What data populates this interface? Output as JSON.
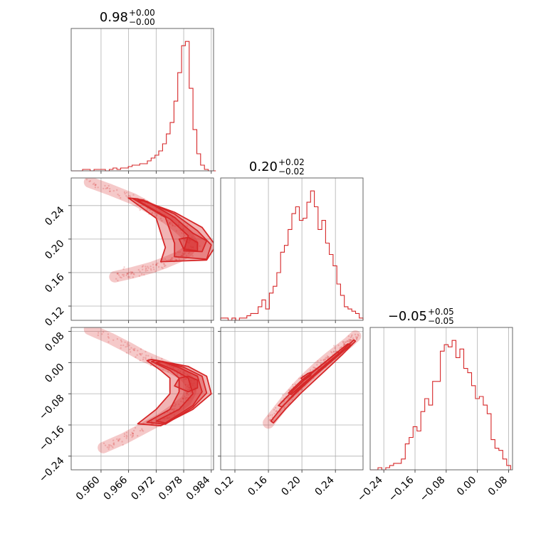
{
  "chart_data": {
    "type": "corner",
    "color": "#d62728",
    "parameters": [
      {
        "title": {
          "median": "0.98",
          "plus": "+0.00",
          "minus": "−0.00"
        },
        "range": [
          0.9535,
          0.9845
        ],
        "ticks": [
          0.96,
          0.966,
          0.972,
          0.978,
          0.984
        ],
        "tick_labels": [
          "0.960",
          "0.966",
          "0.972",
          "0.978",
          "0.984"
        ]
      },
      {
        "title": {
          "median": "0.20",
          "plus": "+0.02",
          "minus": "−0.02"
        },
        "range": [
          0.103,
          0.273
        ],
        "ticks": [
          0.12,
          0.16,
          0.2,
          0.24
        ],
        "tick_labels": [
          "0.12",
          "0.16",
          "0.20",
          "0.24"
        ]
      },
      {
        "title": {
          "median": "−0.05",
          "plus": "+0.05",
          "minus": "−0.05"
        },
        "range": [
          -0.275,
          0.09
        ],
        "ticks": [
          -0.24,
          -0.16,
          -0.08,
          0.0,
          0.08
        ],
        "tick_labels": [
          "−0.24",
          "−0.16",
          "−0.08",
          "0.00",
          "0.08"
        ]
      }
    ],
    "histograms": [
      {
        "edges": [
          0.9535,
          0.985
        ],
        "counts": [
          0,
          0,
          0,
          1,
          1,
          0,
          1,
          1,
          1,
          0,
          1,
          2,
          1,
          2,
          2,
          3,
          4,
          4,
          5,
          5,
          7,
          9,
          11,
          14,
          19,
          26,
          34,
          49,
          69,
          88,
          91,
          58,
          29,
          12,
          4,
          1,
          0,
          0
        ]
      },
      {
        "edges": [
          0.103,
          0.273
        ],
        "counts": [
          1,
          1,
          0,
          1,
          0,
          1,
          1,
          2,
          3,
          3,
          6,
          9,
          5,
          12,
          15,
          21,
          30,
          33,
          40,
          47,
          50,
          44,
          45,
          52,
          57,
          50,
          40,
          44,
          34,
          29,
          24,
          16,
          11,
          6,
          5,
          4,
          3,
          1
        ]
      },
      {
        "edges": [
          -0.275,
          0.085
        ],
        "counts": [
          0,
          0,
          1,
          0,
          1,
          2,
          3,
          3,
          5,
          12,
          15,
          20,
          18,
          27,
          33,
          30,
          41,
          41,
          55,
          58,
          57,
          60,
          52,
          56,
          47,
          45,
          39,
          33,
          34,
          30,
          26,
          14,
          10,
          9,
          5,
          2
        ]
      }
    ],
    "pairs": [
      {
        "x_param": 0,
        "y_param": 1,
        "ridge": [
          [
            0.9575,
            0.268
          ],
          [
            0.962,
            0.259
          ],
          [
            0.967,
            0.248
          ],
          [
            0.971,
            0.236
          ],
          [
            0.9745,
            0.224
          ],
          [
            0.977,
            0.213
          ],
          [
            0.979,
            0.203
          ],
          [
            0.98,
            0.194
          ],
          [
            0.979,
            0.186
          ],
          [
            0.977,
            0.179
          ],
          [
            0.974,
            0.172
          ],
          [
            0.971,
            0.166
          ],
          [
            0.967,
            0.16
          ],
          [
            0.963,
            0.155
          ]
        ],
        "contours": [
          [
            [
              0.977,
              0.2
            ],
            [
              0.978,
              0.188
            ],
            [
              0.981,
              0.186
            ],
            [
              0.981,
              0.196
            ],
            [
              0.979,
              0.202
            ]
          ],
          [
            [
              0.968,
              0.246
            ],
            [
              0.975,
              0.224
            ],
            [
              0.979,
              0.204
            ],
            [
              0.978,
              0.186
            ],
            [
              0.982,
              0.185
            ],
            [
              0.983,
              0.198
            ],
            [
              0.98,
              0.207
            ],
            [
              0.976,
              0.226
            ],
            [
              0.97,
              0.245
            ]
          ],
          [
            [
              0.967,
              0.248
            ],
            [
              0.974,
              0.226
            ],
            [
              0.976,
              0.195
            ],
            [
              0.976,
              0.179
            ],
            [
              0.983,
              0.176
            ],
            [
              0.984,
              0.193
            ],
            [
              0.981,
              0.21
            ],
            [
              0.976,
              0.23
            ],
            [
              0.969,
              0.247
            ]
          ],
          [
            [
              0.966,
              0.249
            ],
            [
              0.972,
              0.225
            ],
            [
              0.974,
              0.19
            ],
            [
              0.973,
              0.173
            ],
            [
              0.983,
              0.175
            ],
            [
              0.985,
              0.192
            ],
            [
              0.982,
              0.214
            ],
            [
              0.976,
              0.232
            ],
            [
              0.968,
              0.248
            ]
          ]
        ]
      },
      {
        "x_param": 0,
        "y_param": 2,
        "ridge": [
          [
            0.9575,
            0.085
          ],
          [
            0.962,
            0.062
          ],
          [
            0.966,
            0.038
          ],
          [
            0.969,
            0.018
          ],
          [
            0.9725,
            0.0
          ],
          [
            0.9755,
            -0.015
          ],
          [
            0.978,
            -0.032
          ],
          [
            0.9795,
            -0.052
          ],
          [
            0.9795,
            -0.075
          ],
          [
            0.9785,
            -0.098
          ],
          [
            0.976,
            -0.12
          ],
          [
            0.973,
            -0.145
          ],
          [
            0.969,
            -0.17
          ],
          [
            0.965,
            -0.195
          ],
          [
            0.9605,
            -0.218
          ]
        ],
        "contours": [
          [
            [
              0.977,
              -0.04
            ],
            [
              0.979,
              -0.035
            ],
            [
              0.981,
              -0.045
            ],
            [
              0.981,
              -0.065
            ],
            [
              0.979,
              -0.075
            ],
            [
              0.976,
              -0.06
            ]
          ],
          [
            [
              0.972,
              0.0
            ],
            [
              0.976,
              -0.02
            ],
            [
              0.979,
              -0.04
            ],
            [
              0.98,
              -0.08
            ],
            [
              0.977,
              -0.12
            ],
            [
              0.972,
              -0.15
            ],
            [
              0.974,
              -0.155
            ],
            [
              0.98,
              -0.11
            ],
            [
              0.982,
              -0.075
            ],
            [
              0.981,
              -0.035
            ],
            [
              0.977,
              -0.013
            ],
            [
              0.973,
              0.003
            ]
          ],
          [
            [
              0.971,
              0.003
            ],
            [
              0.975,
              -0.02
            ],
            [
              0.977,
              -0.04
            ],
            [
              0.977,
              -0.075
            ],
            [
              0.975,
              -0.12
            ],
            [
              0.97,
              -0.153
            ],
            [
              0.974,
              -0.158
            ],
            [
              0.98,
              -0.115
            ],
            [
              0.983,
              -0.078
            ],
            [
              0.982,
              -0.035
            ],
            [
              0.978,
              -0.012
            ],
            [
              0.972,
              0.006
            ]
          ],
          [
            [
              0.97,
              0.005
            ],
            [
              0.973,
              -0.02
            ],
            [
              0.975,
              -0.04
            ],
            [
              0.975,
              -0.08
            ],
            [
              0.972,
              -0.12
            ],
            [
              0.968,
              -0.157
            ],
            [
              0.973,
              -0.162
            ],
            [
              0.98,
              -0.12
            ],
            [
              0.984,
              -0.08
            ],
            [
              0.983,
              -0.035
            ],
            [
              0.979,
              -0.01
            ],
            [
              0.971,
              0.008
            ]
          ]
        ]
      },
      {
        "x_param": 1,
        "y_param": 2,
        "ridge": [
          [
            0.16,
            -0.155
          ],
          [
            0.172,
            -0.122
          ],
          [
            0.184,
            -0.089
          ],
          [
            0.196,
            -0.06
          ],
          [
            0.208,
            -0.034
          ],
          [
            0.22,
            -0.01
          ],
          [
            0.232,
            0.012
          ],
          [
            0.244,
            0.032
          ],
          [
            0.256,
            0.052
          ],
          [
            0.264,
            0.068
          ]
        ],
        "contours": [
          [
            [
              0.199,
              -0.04
            ],
            [
              0.207,
              -0.028
            ],
            [
              0.212,
              -0.024
            ],
            [
              0.21,
              -0.034
            ],
            [
              0.202,
              -0.046
            ]
          ],
          [
            [
              0.184,
              -0.078
            ],
            [
              0.2,
              -0.045
            ],
            [
              0.22,
              -0.012
            ],
            [
              0.242,
              0.026
            ],
            [
              0.246,
              0.025
            ],
            [
              0.224,
              -0.015
            ],
            [
              0.204,
              -0.05
            ],
            [
              0.187,
              -0.082
            ]
          ],
          [
            [
              0.172,
              -0.11
            ],
            [
              0.19,
              -0.07
            ],
            [
              0.21,
              -0.03
            ],
            [
              0.234,
              0.012
            ],
            [
              0.255,
              0.048
            ],
            [
              0.258,
              0.045
            ],
            [
              0.238,
              0.008
            ],
            [
              0.214,
              -0.036
            ],
            [
              0.194,
              -0.076
            ],
            [
              0.176,
              -0.114
            ]
          ],
          [
            [
              0.163,
              -0.15
            ],
            [
              0.176,
              -0.115
            ],
            [
              0.195,
              -0.07
            ],
            [
              0.22,
              -0.02
            ],
            [
              0.245,
              0.025
            ],
            [
              0.262,
              0.058
            ],
            [
              0.264,
              0.055
            ],
            [
              0.248,
              0.02
            ],
            [
              0.224,
              -0.028
            ],
            [
              0.199,
              -0.078
            ],
            [
              0.18,
              -0.12
            ],
            [
              0.166,
              -0.155
            ]
          ]
        ]
      }
    ]
  }
}
